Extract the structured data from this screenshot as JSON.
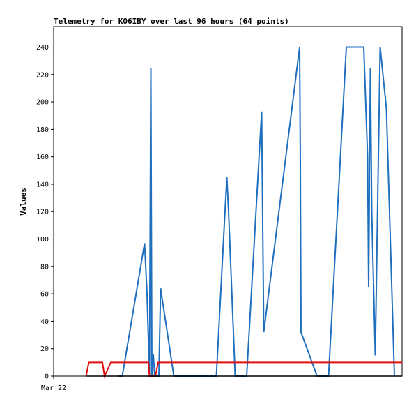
{
  "chart_data": {
    "type": "line",
    "title": "Telemetry for KO6IBY over last 96 hours (64 points)",
    "ylabel": "Values",
    "xlabel": "",
    "x_tick_labels": [
      "Mar 22"
    ],
    "ylim": [
      0,
      255
    ],
    "xlim": [
      0,
      100
    ],
    "y_ticks": [
      0,
      20,
      40,
      60,
      80,
      100,
      120,
      140,
      160,
      180,
      200,
      220,
      240
    ],
    "grid": false,
    "legend": "none",
    "series": [
      {
        "color": "#1f6fbf",
        "points": [
          [
            18.4,
            0
          ],
          [
            19.0,
            0
          ],
          [
            19.7,
            0
          ],
          [
            26.1,
            97
          ],
          [
            26.8,
            60
          ],
          [
            27.5,
            0
          ],
          [
            27.9,
            225
          ],
          [
            28.2,
            0
          ],
          [
            28.6,
            16
          ],
          [
            29.0,
            0
          ],
          [
            30.2,
            0
          ],
          [
            30.7,
            64
          ],
          [
            34.5,
            0
          ],
          [
            46.7,
            0
          ],
          [
            49.7,
            145
          ],
          [
            50.2,
            120
          ],
          [
            52.1,
            0
          ],
          [
            55.4,
            0
          ],
          [
            59.7,
            193
          ],
          [
            60.3,
            32
          ],
          [
            70.6,
            240
          ],
          [
            70.8,
            155
          ],
          [
            71.0,
            32
          ],
          [
            75.6,
            0
          ],
          [
            78.9,
            0
          ],
          [
            84.0,
            240
          ],
          [
            86.7,
            240
          ],
          [
            89.0,
            240
          ],
          [
            90.1,
            160
          ],
          [
            90.4,
            65
          ],
          [
            90.9,
            225
          ],
          [
            91.3,
            120
          ],
          [
            92.3,
            15
          ],
          [
            93.7,
            240
          ],
          [
            95.5,
            195
          ],
          [
            97.8,
            0
          ]
        ]
      },
      {
        "color": "#e01010",
        "points": [
          [
            9.3,
            0
          ],
          [
            10.1,
            10
          ],
          [
            14.0,
            10
          ],
          [
            14.3,
            5
          ],
          [
            14.6,
            0
          ],
          [
            16.4,
            10
          ],
          [
            25.0,
            10
          ],
          [
            27.2,
            10
          ],
          [
            27.5,
            0
          ],
          [
            28.4,
            0
          ],
          [
            29.2,
            0
          ],
          [
            30.0,
            10
          ],
          [
            60.0,
            10
          ],
          [
            100.0,
            10
          ]
        ]
      },
      {
        "color": "#000000",
        "points": [
          [
            9.3,
            0
          ],
          [
            100.0,
            0
          ]
        ]
      }
    ]
  }
}
